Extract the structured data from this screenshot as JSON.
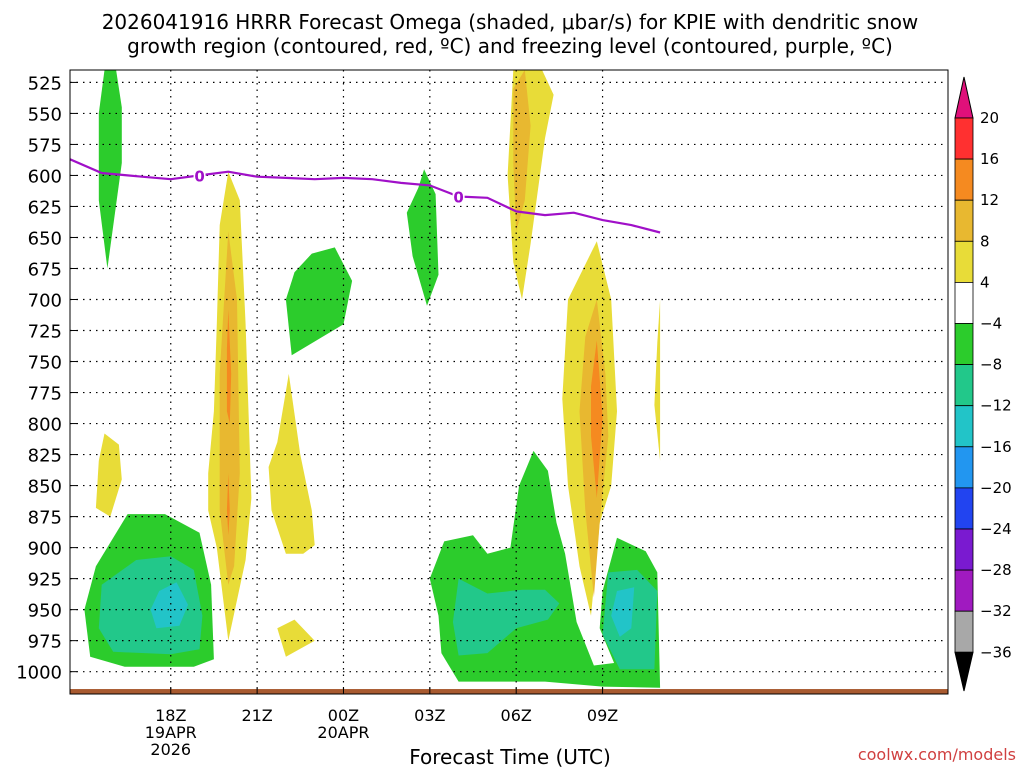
{
  "chart_data": {
    "type": "contour",
    "title_lines": [
      "2026041916 HRRR Forecast Omega (shaded, μbar/s) for KPIE with dendritic snow",
      "growth region (contoured, red, ºC) and freezing level (contoured, purple, ºC)"
    ],
    "xlabel": "Forecast Time (UTC)",
    "credit": "coolwx.com/models",
    "x_range_hours": [
      -3.5,
      27
    ],
    "y_range_hpa": [
      515,
      1018
    ],
    "x_ticks": [
      {
        "hour": 0,
        "label": "18Z",
        "sub": [
          "19APR",
          "2026"
        ]
      },
      {
        "hour": 3,
        "label": "21Z",
        "sub": []
      },
      {
        "hour": 6,
        "label": "00Z",
        "sub": [
          "20APR"
        ]
      },
      {
        "hour": 9,
        "label": "03Z",
        "sub": []
      },
      {
        "hour": 12,
        "label": "06Z",
        "sub": []
      },
      {
        "hour": 15,
        "label": "09Z",
        "sub": []
      }
    ],
    "y_ticks": [
      "525",
      "550",
      "575",
      "600",
      "625",
      "650",
      "675",
      "700",
      "725",
      "750",
      "775",
      "800",
      "825",
      "850",
      "875",
      "900",
      "925",
      "950",
      "975",
      "1000"
    ],
    "colorbar": {
      "labels": [
        "20",
        "16",
        "12",
        "8",
        "4",
        "−4",
        "−8",
        "−12",
        "−16",
        "−20",
        "−24",
        "−28",
        "−32",
        "−36"
      ],
      "colors": [
        "#ff3030",
        "#f58a20",
        "#e8b830",
        "#e8dc38",
        "#ffffff",
        "#2ccc2c",
        "#22c88a",
        "#22c4c8",
        "#2296f0",
        "#2244f0",
        "#7a1ad0",
        "#a01ac0",
        "#a8a8a8"
      ],
      "top_color": "#e0107a",
      "bottom_color": "#000000"
    },
    "freezing_level": {
      "color": "#a010c8",
      "label": "0",
      "label_positions_hour": [
        1.0,
        10.0
      ],
      "points": [
        [
          -3.5,
          587
        ],
        [
          -2.4,
          598
        ],
        [
          -1.5,
          600
        ],
        [
          -1,
          601
        ],
        [
          0,
          603
        ],
        [
          1,
          600
        ],
        [
          2,
          597
        ],
        [
          3,
          601
        ],
        [
          4,
          602
        ],
        [
          5,
          603
        ],
        [
          6,
          602
        ],
        [
          7,
          603
        ],
        [
          8,
          606
        ],
        [
          9,
          608
        ],
        [
          10,
          617
        ],
        [
          11,
          618
        ],
        [
          12,
          629
        ],
        [
          13,
          632
        ],
        [
          14,
          630
        ],
        [
          15,
          636
        ],
        [
          16,
          640
        ],
        [
          17,
          646
        ]
      ],
      "note": "points are [forecast hour offset from 18Z, pressure hPa]"
    },
    "terrain": {
      "color": "#a85a30",
      "pressure_top_hpa": 1014
    },
    "omega_regions": [
      {
        "level": "-4",
        "color": "#2ccc2c",
        "points": [
          [
            -2.3,
            515
          ],
          [
            -1.9,
            515
          ],
          [
            -1.7,
            545
          ],
          [
            -1.7,
            590
          ],
          [
            -2.2,
            675
          ],
          [
            -2.5,
            620
          ],
          [
            -2.5,
            550
          ]
        ]
      },
      {
        "level": "4",
        "color": "#e8dc38",
        "points": [
          [
            -2.3,
            808
          ],
          [
            -1.8,
            817
          ],
          [
            -1.7,
            845
          ],
          [
            -2.1,
            875
          ],
          [
            -2.6,
            868
          ],
          [
            -2.5,
            830
          ]
        ]
      },
      {
        "level": "-4",
        "color": "#2ccc2c",
        "points": [
          [
            -1.5,
            873
          ],
          [
            -0.2,
            873
          ],
          [
            1.0,
            888
          ],
          [
            1.4,
            930
          ],
          [
            1.5,
            990
          ],
          [
            0.8,
            996
          ],
          [
            -1.6,
            996
          ],
          [
            -2.8,
            988
          ],
          [
            -3,
            950
          ],
          [
            -2.6,
            915
          ]
        ]
      },
      {
        "level": "-8",
        "color": "#22c88a",
        "points": [
          [
            -1.2,
            910
          ],
          [
            0,
            907
          ],
          [
            0.8,
            918
          ],
          [
            1.1,
            955
          ],
          [
            1.0,
            982
          ],
          [
            0,
            986
          ],
          [
            -2,
            984
          ],
          [
            -2.5,
            965
          ],
          [
            -2.4,
            930
          ]
        ]
      },
      {
        "level": "-12",
        "color": "#22c4c8",
        "points": [
          [
            -0.4,
            935
          ],
          [
            0.2,
            928
          ],
          [
            0.6,
            946
          ],
          [
            0.3,
            963
          ],
          [
            -0.5,
            965
          ],
          [
            -0.7,
            950
          ]
        ]
      },
      {
        "level": "4",
        "color": "#e8dc38",
        "points": [
          [
            2.0,
            597
          ],
          [
            2.4,
            620
          ],
          [
            2.6,
            720
          ],
          [
            2.8,
            860
          ],
          [
            2.6,
            910
          ],
          [
            2.0,
            975
          ],
          [
            1.6,
            900
          ],
          [
            1.3,
            870
          ],
          [
            1.3,
            840
          ],
          [
            1.5,
            790
          ],
          [
            1.6,
            720
          ],
          [
            1.7,
            640
          ]
        ]
      },
      {
        "level": "8",
        "color": "#e8b830",
        "points": [
          [
            2.0,
            645
          ],
          [
            2.3,
            700
          ],
          [
            2.4,
            840
          ],
          [
            2.2,
            915
          ],
          [
            2.0,
            930
          ],
          [
            1.7,
            870
          ],
          [
            1.7,
            760
          ]
        ]
      },
      {
        "level": "12",
        "color": "#f58a20",
        "points": [
          [
            2.0,
            708
          ],
          [
            2.1,
            760
          ],
          [
            2.05,
            800
          ],
          [
            1.95,
            790
          ],
          [
            1.95,
            740
          ]
        ]
      },
      {
        "level": "12",
        "color": "#f58a20",
        "points": [
          [
            2.0,
            840
          ],
          [
            2.05,
            870
          ],
          [
            2.0,
            890
          ],
          [
            1.95,
            870
          ]
        ]
      },
      {
        "level": "4",
        "color": "#e8dc38",
        "points": [
          [
            4.1,
            760
          ],
          [
            4.5,
            825
          ],
          [
            4.9,
            870
          ],
          [
            5.0,
            898
          ],
          [
            4.6,
            905
          ],
          [
            4.0,
            905
          ],
          [
            3.5,
            870
          ],
          [
            3.4,
            835
          ],
          [
            3.7,
            815
          ]
        ]
      },
      {
        "level": "4",
        "color": "#e8dc38",
        "points": [
          [
            4.3,
            958
          ],
          [
            5.0,
            975
          ],
          [
            4.0,
            988
          ],
          [
            3.7,
            965
          ]
        ]
      },
      {
        "level": "-4",
        "color": "#2ccc2c",
        "points": [
          [
            4.9,
            663
          ],
          [
            5.7,
            658
          ],
          [
            6.3,
            685
          ],
          [
            6.0,
            720
          ],
          [
            4.2,
            745
          ],
          [
            4.0,
            700
          ],
          [
            4.3,
            678
          ]
        ]
      },
      {
        "level": "-4",
        "color": "#2ccc2c",
        "points": [
          [
            8.8,
            595
          ],
          [
            9.2,
            615
          ],
          [
            9.3,
            680
          ],
          [
            8.9,
            705
          ],
          [
            8.4,
            665
          ],
          [
            8.2,
            630
          ],
          [
            8.6,
            610
          ]
        ]
      },
      {
        "level": "4",
        "color": "#e8dc38",
        "points": [
          [
            12.9,
            515
          ],
          [
            13.3,
            535
          ],
          [
            13.0,
            570
          ],
          [
            12.5,
            655
          ],
          [
            12.2,
            700
          ],
          [
            11.9,
            670
          ],
          [
            11.7,
            600
          ],
          [
            11.9,
            515
          ]
        ]
      },
      {
        "level": "8",
        "color": "#e8b830",
        "points": [
          [
            12.3,
            515
          ],
          [
            12.5,
            560
          ],
          [
            12.3,
            620
          ],
          [
            12.0,
            645
          ],
          [
            11.9,
            590
          ],
          [
            11.9,
            530
          ]
        ]
      },
      {
        "level": "-4",
        "color": "#2ccc2c",
        "points": [
          [
            9.5,
            895
          ],
          [
            10.5,
            890
          ],
          [
            11.0,
            905
          ],
          [
            11.8,
            900
          ],
          [
            12.1,
            850
          ],
          [
            12.6,
            822
          ],
          [
            13.1,
            838
          ],
          [
            13.4,
            880
          ],
          [
            13.7,
            905
          ],
          [
            14.1,
            960
          ],
          [
            14.7,
            995
          ],
          [
            15.4,
            993
          ],
          [
            14.9,
            965
          ],
          [
            15.0,
            935
          ],
          [
            15.5,
            892
          ],
          [
            16.5,
            903
          ],
          [
            16.9,
            920
          ],
          [
            17,
            1013
          ],
          [
            15.0,
            1012
          ],
          [
            13.0,
            1008
          ],
          [
            10.0,
            1008
          ],
          [
            9.4,
            985
          ],
          [
            9.3,
            955
          ],
          [
            9.0,
            925
          ]
        ]
      },
      {
        "level": "-8",
        "color": "#22c88a",
        "points": [
          [
            10.0,
            925
          ],
          [
            11.0,
            937
          ],
          [
            12.2,
            934
          ],
          [
            13.0,
            934
          ],
          [
            13.5,
            945
          ],
          [
            13.1,
            958
          ],
          [
            12.0,
            965
          ],
          [
            11.0,
            985
          ],
          [
            10.0,
            987
          ],
          [
            9.8,
            960
          ]
        ]
      },
      {
        "level": "-8",
        "color": "#22c88a",
        "points": [
          [
            15.2,
            920
          ],
          [
            16.2,
            918
          ],
          [
            16.9,
            935
          ],
          [
            16.8,
            998
          ],
          [
            15.6,
            998
          ],
          [
            15.0,
            970
          ]
        ]
      },
      {
        "level": "-12",
        "color": "#22c4c8",
        "points": [
          [
            15.5,
            935
          ],
          [
            16.1,
            932
          ],
          [
            16.0,
            965
          ],
          [
            15.6,
            972
          ],
          [
            15.3,
            955
          ]
        ]
      },
      {
        "level": "4",
        "color": "#e8dc38",
        "points": [
          [
            14.8,
            653
          ],
          [
            15.3,
            700
          ],
          [
            15.5,
            790
          ],
          [
            15.3,
            850
          ],
          [
            14.9,
            880
          ],
          [
            14.6,
            955
          ],
          [
            14.2,
            915
          ],
          [
            13.8,
            850
          ],
          [
            13.6,
            780
          ],
          [
            13.8,
            700
          ]
        ]
      },
      {
        "level": "8",
        "color": "#e8b830",
        "points": [
          [
            14.8,
            700
          ],
          [
            15.1,
            760
          ],
          [
            15.2,
            810
          ],
          [
            14.9,
            880
          ],
          [
            14.7,
            940
          ],
          [
            14.4,
            870
          ],
          [
            14.2,
            790
          ],
          [
            14.4,
            730
          ]
        ]
      },
      {
        "level": "12",
        "color": "#f58a20",
        "points": [
          [
            14.8,
            733
          ],
          [
            15.0,
            795
          ],
          [
            14.8,
            860
          ],
          [
            14.6,
            810
          ],
          [
            14.6,
            770
          ]
        ]
      },
      {
        "level": "4",
        "color": "#e8dc38",
        "points": [
          [
            17,
            700
          ],
          [
            17,
            830
          ],
          [
            16.8,
            785
          ],
          [
            16.9,
            735
          ]
        ]
      }
    ]
  }
}
